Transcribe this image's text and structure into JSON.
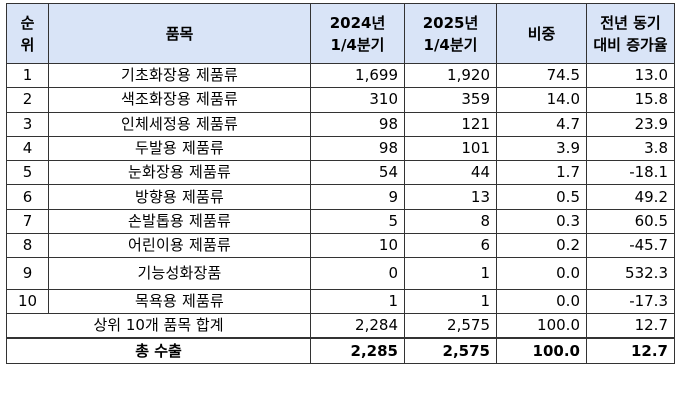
{
  "unit_label": "",
  "headers": {
    "rank": [
      "순",
      "위"
    ],
    "item": "품목",
    "y2024": [
      "2024년",
      "1/4분기"
    ],
    "y2025": [
      "2025년",
      "1/4분기"
    ],
    "share": "비중",
    "yoy": [
      "전년 동기",
      "대비 증가율"
    ]
  },
  "rows": [
    {
      "rank": "1",
      "item": "기초화장용 제품류",
      "y2024": "1,699",
      "y2025": "1,920",
      "share": "74.5",
      "yoy": "13.0"
    },
    {
      "rank": "2",
      "item": "색조화장용 제품류",
      "y2024": "310",
      "y2025": "359",
      "share": "14.0",
      "yoy": "15.8"
    },
    {
      "rank": "3",
      "item": "인체세정용 제품류",
      "y2024": "98",
      "y2025": "121",
      "share": "4.7",
      "yoy": "23.9"
    },
    {
      "rank": "4",
      "item": "두발용 제품류",
      "y2024": "98",
      "y2025": "101",
      "share": "3.9",
      "yoy": "3.8"
    },
    {
      "rank": "5",
      "item": "눈화장용 제품류",
      "y2024": "54",
      "y2025": "44",
      "share": "1.7",
      "yoy": "-18.1"
    },
    {
      "rank": "6",
      "item": "방향용 제품류",
      "y2024": "9",
      "y2025": "13",
      "share": "0.5",
      "yoy": "49.2"
    },
    {
      "rank": "7",
      "item": "손발톱용 제품류",
      "y2024": "5",
      "y2025": "8",
      "share": "0.3",
      "yoy": "60.5"
    },
    {
      "rank": "8",
      "item": "어린이용 제품류",
      "y2024": "10",
      "y2025": "6",
      "share": "0.2",
      "yoy": "-45.7"
    },
    {
      "rank": "9",
      "item": "기능성화장품",
      "y2024": "0",
      "y2025": "1",
      "share": "0.0",
      "yoy": "532.3"
    },
    {
      "rank": "10",
      "item": "목욕용 제품류",
      "y2024": "1",
      "y2025": "1",
      "share": "0.0",
      "yoy": "-17.3"
    }
  ],
  "subtotal": {
    "label": "상위 10개 품목 합계",
    "y2024": "2,284",
    "y2025": "2,575",
    "share": "100.0",
    "yoy": "12.7"
  },
  "total": {
    "label": "총 수출",
    "y2024": "2,285",
    "y2025": "2,575",
    "share": "100.0",
    "yoy": "12.7"
  },
  "colors": {
    "header_bg": "#d9e4f7",
    "border": "#333333"
  }
}
